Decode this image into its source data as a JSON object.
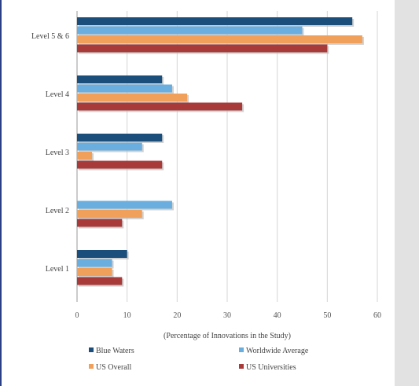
{
  "chart_data": {
    "type": "bar",
    "orientation": "horizontal",
    "categories": [
      "Level 5 & 6",
      "Level 4",
      "Level 3",
      "Level 2",
      "Level 1"
    ],
    "series": [
      {
        "name": "Blue Waters",
        "color": "#1b4e7a",
        "values": [
          55,
          17,
          17,
          0,
          10
        ]
      },
      {
        "name": "Worldwide Average",
        "color": "#6aaee0",
        "values": [
          45,
          19,
          13,
          19,
          7
        ]
      },
      {
        "name": "US Overall",
        "color": "#f0a05a",
        "values": [
          57,
          22,
          3,
          13,
          7
        ]
      },
      {
        "name": "US Universities",
        "color": "#a83a3a",
        "values": [
          50,
          33,
          17,
          9,
          9
        ]
      }
    ],
    "xlabel": "(Percentage of Innovations in the Study)",
    "ylabel": "",
    "xlim": [
      0,
      60
    ],
    "xticks": [
      "0",
      "10",
      "20",
      "30",
      "40",
      "50",
      "60"
    ],
    "grid": true,
    "legend_position": "bottom"
  }
}
